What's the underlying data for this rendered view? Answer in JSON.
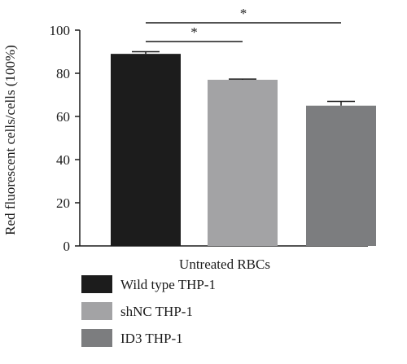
{
  "chart_data": {
    "type": "bar",
    "ylabel": "Red fluorescent cells/cells (100%)",
    "xlabel": "Untreated RBCs",
    "ylim": [
      0,
      100
    ],
    "yticks": [
      0,
      20,
      40,
      60,
      80,
      100
    ],
    "grid": false,
    "legend_position": "bottom-left",
    "series": [
      {
        "name": "Wild type THP-1",
        "value": 89,
        "error": 1,
        "color": "#1c1c1c"
      },
      {
        "name": "shNC THP-1",
        "value": 77,
        "error": 0.3,
        "color": "#a3a3a5"
      },
      {
        "name": "ID3 THP-1",
        "value": 65,
        "error": 2,
        "color": "#7c7d7f"
      }
    ],
    "annotations": [
      {
        "from": "Wild type THP-1",
        "to": "shNC THP-1",
        "label": "*"
      },
      {
        "from": "Wild type THP-1",
        "to": "ID3 THP-1",
        "label": "*"
      }
    ]
  }
}
